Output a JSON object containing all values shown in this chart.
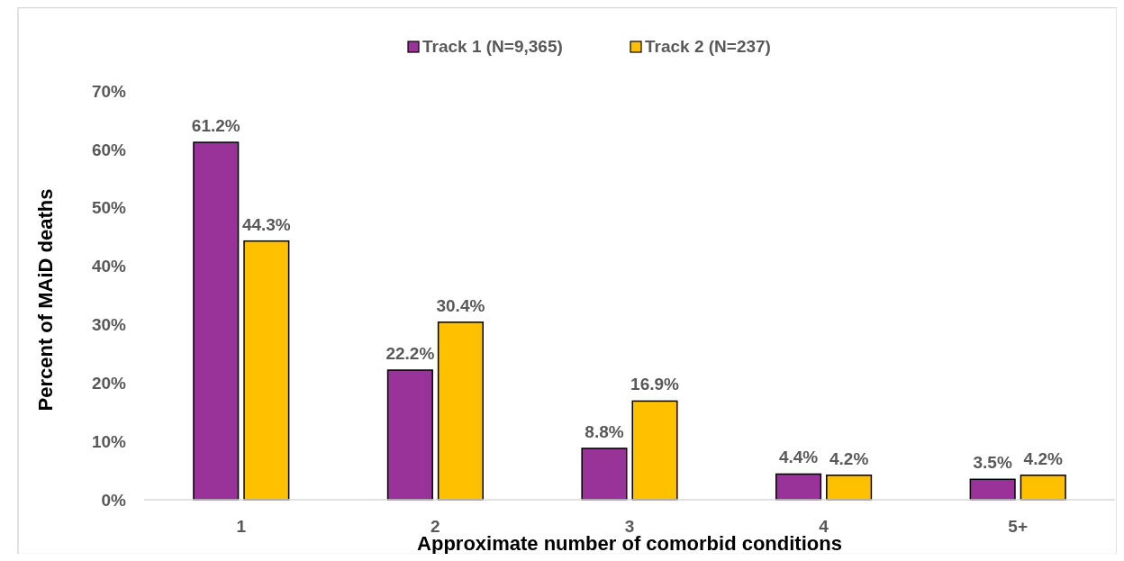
{
  "chart_data": {
    "type": "bar",
    "xlabel": "Approximate number of comorbid conditions",
    "ylabel": "Percent of MAiD deaths",
    "categories": [
      "1",
      "2",
      "3",
      "4",
      "5+"
    ],
    "series": [
      {
        "name": "Track 1 (N=9,365)",
        "color": "#993399",
        "values": [
          61.2,
          22.2,
          8.8,
          4.4,
          3.5
        ]
      },
      {
        "name": "Track 2 (N=237)",
        "color": "#ffc000",
        "values": [
          44.3,
          30.4,
          16.9,
          4.2,
          4.2
        ]
      }
    ],
    "ylim": [
      0,
      70
    ],
    "yticks": [
      {
        "value": 0,
        "label": "0%"
      },
      {
        "value": 10,
        "label": "10%"
      },
      {
        "value": 20,
        "label": "20%"
      },
      {
        "value": 30,
        "label": "30%"
      },
      {
        "value": 40,
        "label": "40%"
      },
      {
        "value": 50,
        "label": "50%"
      },
      {
        "value": 60,
        "label": "60%"
      },
      {
        "value": 70,
        "label": "70%"
      }
    ],
    "value_labels": [
      [
        "61.2%",
        "22.2%",
        "8.8%",
        "4.4%",
        "3.5%"
      ],
      [
        "44.3%",
        "30.4%",
        "16.9%",
        "4.2%",
        "4.2%"
      ]
    ],
    "legend": "top",
    "grid": false
  }
}
